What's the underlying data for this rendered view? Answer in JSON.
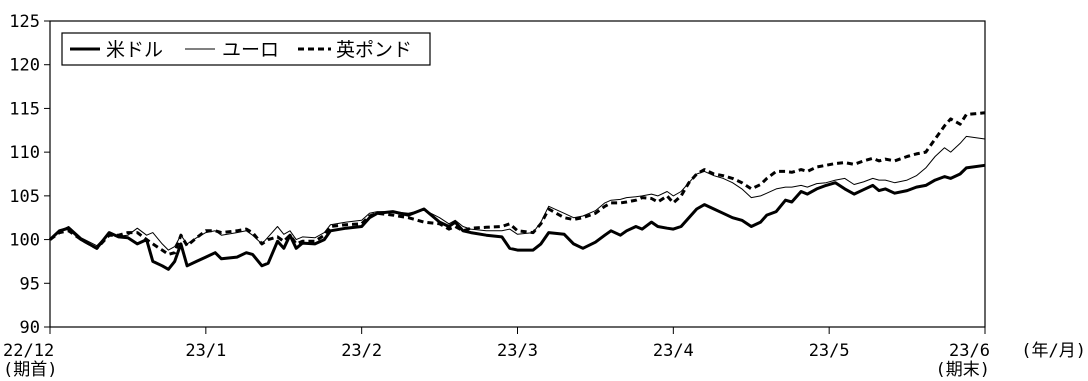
{
  "chart_data": {
    "type": "line",
    "ylim": [
      90,
      125
    ],
    "yticks": [
      90,
      95,
      100,
      105,
      110,
      115,
      120,
      125
    ],
    "xlim": [
      0,
      6
    ],
    "xticks": [
      {
        "x": 0,
        "label": "22/12",
        "sublabel": "(期首)"
      },
      {
        "x": 1,
        "label": "23/1",
        "sublabel": ""
      },
      {
        "x": 2,
        "label": "23/2",
        "sublabel": ""
      },
      {
        "x": 3,
        "label": "23/3",
        "sublabel": ""
      },
      {
        "x": 4,
        "label": "23/4",
        "sublabel": ""
      },
      {
        "x": 5,
        "label": "23/5",
        "sublabel": ""
      },
      {
        "x": 6,
        "label": "23/6",
        "sublabel": "(期末)"
      }
    ],
    "xunit": "(年/月)",
    "grid": false,
    "legend_position": "top-left",
    "series": [
      {
        "name": "米ドル",
        "style": "solid-thick",
        "color": "#000000",
        "points": [
          [
            0,
            100
          ],
          [
            0.06,
            101
          ],
          [
            0.12,
            101.3
          ],
          [
            0.2,
            100
          ],
          [
            0.3,
            99
          ],
          [
            0.38,
            100.8
          ],
          [
            0.44,
            100.3
          ],
          [
            0.5,
            100.2
          ],
          [
            0.56,
            99.5
          ],
          [
            0.62,
            100
          ],
          [
            0.66,
            97.5
          ],
          [
            0.72,
            97
          ],
          [
            0.76,
            96.6
          ],
          [
            0.8,
            97.5
          ],
          [
            0.84,
            99.5
          ],
          [
            0.88,
            97
          ],
          [
            0.94,
            97.5
          ],
          [
            1,
            98
          ],
          [
            1.06,
            98.5
          ],
          [
            1.1,
            97.8
          ],
          [
            1.2,
            98
          ],
          [
            1.26,
            98.5
          ],
          [
            1.3,
            98.3
          ],
          [
            1.36,
            97
          ],
          [
            1.4,
            97.3
          ],
          [
            1.46,
            99.8
          ],
          [
            1.5,
            99
          ],
          [
            1.54,
            100.5
          ],
          [
            1.58,
            99
          ],
          [
            1.62,
            99.6
          ],
          [
            1.7,
            99.5
          ],
          [
            1.76,
            100
          ],
          [
            1.8,
            101
          ],
          [
            1.9,
            101.3
          ],
          [
            2,
            101.5
          ],
          [
            2.05,
            102.5
          ],
          [
            2.1,
            103
          ],
          [
            2.2,
            103.2
          ],
          [
            2.3,
            102.8
          ],
          [
            2.4,
            103.5
          ],
          [
            2.5,
            102
          ],
          [
            2.56,
            101.5
          ],
          [
            2.6,
            102
          ],
          [
            2.65,
            101
          ],
          [
            2.7,
            100.8
          ],
          [
            2.8,
            100.5
          ],
          [
            2.9,
            100.3
          ],
          [
            2.95,
            99
          ],
          [
            3,
            98.8
          ],
          [
            3.1,
            98.8
          ],
          [
            3.15,
            99.5
          ],
          [
            3.2,
            100.8
          ],
          [
            3.3,
            100.6
          ],
          [
            3.36,
            99.5
          ],
          [
            3.42,
            99
          ],
          [
            3.5,
            99.7
          ],
          [
            3.56,
            100.5
          ],
          [
            3.6,
            101
          ],
          [
            3.66,
            100.5
          ],
          [
            3.7,
            101
          ],
          [
            3.76,
            101.5
          ],
          [
            3.8,
            101.2
          ],
          [
            3.86,
            102
          ],
          [
            3.9,
            101.5
          ],
          [
            3.96,
            101.3
          ],
          [
            4,
            101.2
          ],
          [
            4.05,
            101.5
          ],
          [
            4.1,
            102.5
          ],
          [
            4.15,
            103.5
          ],
          [
            4.2,
            104
          ],
          [
            4.26,
            103.5
          ],
          [
            4.32,
            103
          ],
          [
            4.38,
            102.5
          ],
          [
            4.44,
            102.2
          ],
          [
            4.5,
            101.5
          ],
          [
            4.56,
            102
          ],
          [
            4.6,
            102.8
          ],
          [
            4.66,
            103.2
          ],
          [
            4.72,
            104.5
          ],
          [
            4.76,
            104.3
          ],
          [
            4.82,
            105.5
          ],
          [
            4.86,
            105.2
          ],
          [
            4.92,
            105.8
          ],
          [
            4.98,
            106.2
          ],
          [
            5.04,
            106.5
          ],
          [
            5.1,
            105.8
          ],
          [
            5.16,
            105.2
          ],
          [
            5.22,
            105.7
          ],
          [
            5.28,
            106.2
          ],
          [
            5.32,
            105.6
          ],
          [
            5.36,
            105.8
          ],
          [
            5.42,
            105.3
          ],
          [
            5.5,
            105.6
          ],
          [
            5.56,
            106
          ],
          [
            5.62,
            106.2
          ],
          [
            5.68,
            106.8
          ],
          [
            5.74,
            107.2
          ],
          [
            5.78,
            107
          ],
          [
            5.84,
            107.5
          ],
          [
            5.88,
            108.2
          ],
          [
            6,
            108.5
          ]
        ]
      },
      {
        "name": "ユーロ",
        "style": "solid-thin",
        "color": "#000000",
        "points": [
          [
            0,
            100
          ],
          [
            0.06,
            101
          ],
          [
            0.12,
            101.5
          ],
          [
            0.2,
            100.2
          ],
          [
            0.3,
            99.3
          ],
          [
            0.38,
            100.8
          ],
          [
            0.44,
            100.4
          ],
          [
            0.5,
            100.5
          ],
          [
            0.56,
            101.3
          ],
          [
            0.62,
            100.5
          ],
          [
            0.66,
            100.8
          ],
          [
            0.72,
            99.5
          ],
          [
            0.76,
            98.8
          ],
          [
            0.8,
            99.2
          ],
          [
            0.84,
            100.5
          ],
          [
            0.88,
            99.5
          ],
          [
            0.94,
            100.2
          ],
          [
            1,
            100.8
          ],
          [
            1.06,
            101
          ],
          [
            1.1,
            100.5
          ],
          [
            1.2,
            100.8
          ],
          [
            1.26,
            101
          ],
          [
            1.3,
            100.5
          ],
          [
            1.36,
            99.5
          ],
          [
            1.4,
            100.3
          ],
          [
            1.46,
            101.5
          ],
          [
            1.5,
            100.6
          ],
          [
            1.54,
            101
          ],
          [
            1.58,
            100
          ],
          [
            1.62,
            100.3
          ],
          [
            1.7,
            100.2
          ],
          [
            1.76,
            100.8
          ],
          [
            1.8,
            101.7
          ],
          [
            1.9,
            102
          ],
          [
            2,
            102.2
          ],
          [
            2.05,
            103
          ],
          [
            2.1,
            103.2
          ],
          [
            2.2,
            103.2
          ],
          [
            2.3,
            103
          ],
          [
            2.4,
            103.4
          ],
          [
            2.5,
            102.5
          ],
          [
            2.56,
            101.8
          ],
          [
            2.6,
            102.2
          ],
          [
            2.65,
            101.5
          ],
          [
            2.7,
            101.2
          ],
          [
            2.8,
            101
          ],
          [
            2.9,
            101
          ],
          [
            2.95,
            101.2
          ],
          [
            3,
            100.6
          ],
          [
            3.1,
            100.8
          ],
          [
            3.15,
            102
          ],
          [
            3.2,
            103.8
          ],
          [
            3.3,
            103
          ],
          [
            3.36,
            102.5
          ],
          [
            3.42,
            102.7
          ],
          [
            3.5,
            103.3
          ],
          [
            3.56,
            104.2
          ],
          [
            3.6,
            104.5
          ],
          [
            3.66,
            104.6
          ],
          [
            3.7,
            104.8
          ],
          [
            3.76,
            104.9
          ],
          [
            3.8,
            105
          ],
          [
            3.86,
            105.2
          ],
          [
            3.9,
            105
          ],
          [
            3.96,
            105.5
          ],
          [
            4,
            105
          ],
          [
            4.05,
            105.5
          ],
          [
            4.1,
            106.5
          ],
          [
            4.15,
            107.5
          ],
          [
            4.2,
            107.8
          ],
          [
            4.26,
            107.3
          ],
          [
            4.32,
            107
          ],
          [
            4.38,
            106.5
          ],
          [
            4.44,
            105.8
          ],
          [
            4.5,
            104.8
          ],
          [
            4.56,
            105
          ],
          [
            4.6,
            105.3
          ],
          [
            4.66,
            105.8
          ],
          [
            4.72,
            106
          ],
          [
            4.76,
            106
          ],
          [
            4.82,
            106.2
          ],
          [
            4.86,
            106
          ],
          [
            4.92,
            106.4
          ],
          [
            4.98,
            106.5
          ],
          [
            5.04,
            106.8
          ],
          [
            5.1,
            107
          ],
          [
            5.16,
            106.3
          ],
          [
            5.22,
            106.6
          ],
          [
            5.28,
            107
          ],
          [
            5.32,
            106.8
          ],
          [
            5.36,
            106.8
          ],
          [
            5.42,
            106.5
          ],
          [
            5.5,
            106.8
          ],
          [
            5.56,
            107.3
          ],
          [
            5.62,
            108.2
          ],
          [
            5.68,
            109.5
          ],
          [
            5.74,
            110.5
          ],
          [
            5.78,
            110
          ],
          [
            5.84,
            111
          ],
          [
            5.88,
            111.8
          ],
          [
            6,
            111.5
          ]
        ]
      },
      {
        "name": "英ポンド",
        "style": "dashed-thick",
        "color": "#000000",
        "points": [
          [
            0,
            100
          ],
          [
            0.06,
            100.8
          ],
          [
            0.12,
            101
          ],
          [
            0.2,
            100
          ],
          [
            0.3,
            99
          ],
          [
            0.38,
            100.5
          ],
          [
            0.44,
            100.5
          ],
          [
            0.5,
            100.8
          ],
          [
            0.56,
            100.8
          ],
          [
            0.62,
            100
          ],
          [
            0.66,
            99.5
          ],
          [
            0.72,
            98.8
          ],
          [
            0.76,
            98.3
          ],
          [
            0.8,
            98.5
          ],
          [
            0.84,
            100.5
          ],
          [
            0.88,
            99.3
          ],
          [
            0.94,
            100.2
          ],
          [
            1,
            101
          ],
          [
            1.06,
            101
          ],
          [
            1.1,
            100.8
          ],
          [
            1.2,
            101
          ],
          [
            1.26,
            101.2
          ],
          [
            1.3,
            100.8
          ],
          [
            1.36,
            99.5
          ],
          [
            1.4,
            100
          ],
          [
            1.46,
            100.3
          ],
          [
            1.5,
            99.8
          ],
          [
            1.54,
            100.5
          ],
          [
            1.58,
            99.5
          ],
          [
            1.62,
            99.8
          ],
          [
            1.7,
            99.8
          ],
          [
            1.76,
            100.5
          ],
          [
            1.8,
            101.5
          ],
          [
            1.9,
            101.7
          ],
          [
            2,
            101.8
          ],
          [
            2.05,
            102.7
          ],
          [
            2.1,
            103
          ],
          [
            2.2,
            102.8
          ],
          [
            2.3,
            102.5
          ],
          [
            2.4,
            102
          ],
          [
            2.5,
            101.8
          ],
          [
            2.56,
            101.2
          ],
          [
            2.6,
            101.5
          ],
          [
            2.65,
            101
          ],
          [
            2.7,
            101.3
          ],
          [
            2.8,
            101.4
          ],
          [
            2.9,
            101.5
          ],
          [
            2.95,
            101.8
          ],
          [
            3,
            101
          ],
          [
            3.1,
            100.8
          ],
          [
            3.15,
            101.8
          ],
          [
            3.2,
            103.5
          ],
          [
            3.3,
            102.5
          ],
          [
            3.36,
            102.3
          ],
          [
            3.42,
            102.5
          ],
          [
            3.5,
            103
          ],
          [
            3.56,
            103.8
          ],
          [
            3.6,
            104.2
          ],
          [
            3.66,
            104.2
          ],
          [
            3.7,
            104.3
          ],
          [
            3.76,
            104.5
          ],
          [
            3.8,
            104.8
          ],
          [
            3.86,
            104.7
          ],
          [
            3.9,
            104.3
          ],
          [
            3.96,
            105
          ],
          [
            4,
            104.2
          ],
          [
            4.05,
            105
          ],
          [
            4.1,
            106.5
          ],
          [
            4.15,
            107.5
          ],
          [
            4.2,
            108
          ],
          [
            4.26,
            107.5
          ],
          [
            4.32,
            107.3
          ],
          [
            4.38,
            107
          ],
          [
            4.44,
            106.5
          ],
          [
            4.5,
            105.8
          ],
          [
            4.56,
            106.3
          ],
          [
            4.6,
            107
          ],
          [
            4.66,
            107.8
          ],
          [
            4.72,
            107.8
          ],
          [
            4.76,
            107.7
          ],
          [
            4.82,
            108
          ],
          [
            4.86,
            107.8
          ],
          [
            4.92,
            108.3
          ],
          [
            4.98,
            108.5
          ],
          [
            5.04,
            108.7
          ],
          [
            5.1,
            108.8
          ],
          [
            5.16,
            108.6
          ],
          [
            5.22,
            109
          ],
          [
            5.28,
            109.3
          ],
          [
            5.32,
            109
          ],
          [
            5.36,
            109.2
          ],
          [
            5.42,
            109
          ],
          [
            5.5,
            109.5
          ],
          [
            5.56,
            109.8
          ],
          [
            5.62,
            110
          ],
          [
            5.68,
            111.5
          ],
          [
            5.74,
            113
          ],
          [
            5.78,
            113.8
          ],
          [
            5.84,
            113.2
          ],
          [
            5.88,
            114.3
          ],
          [
            6,
            114.5
          ]
        ]
      }
    ]
  }
}
